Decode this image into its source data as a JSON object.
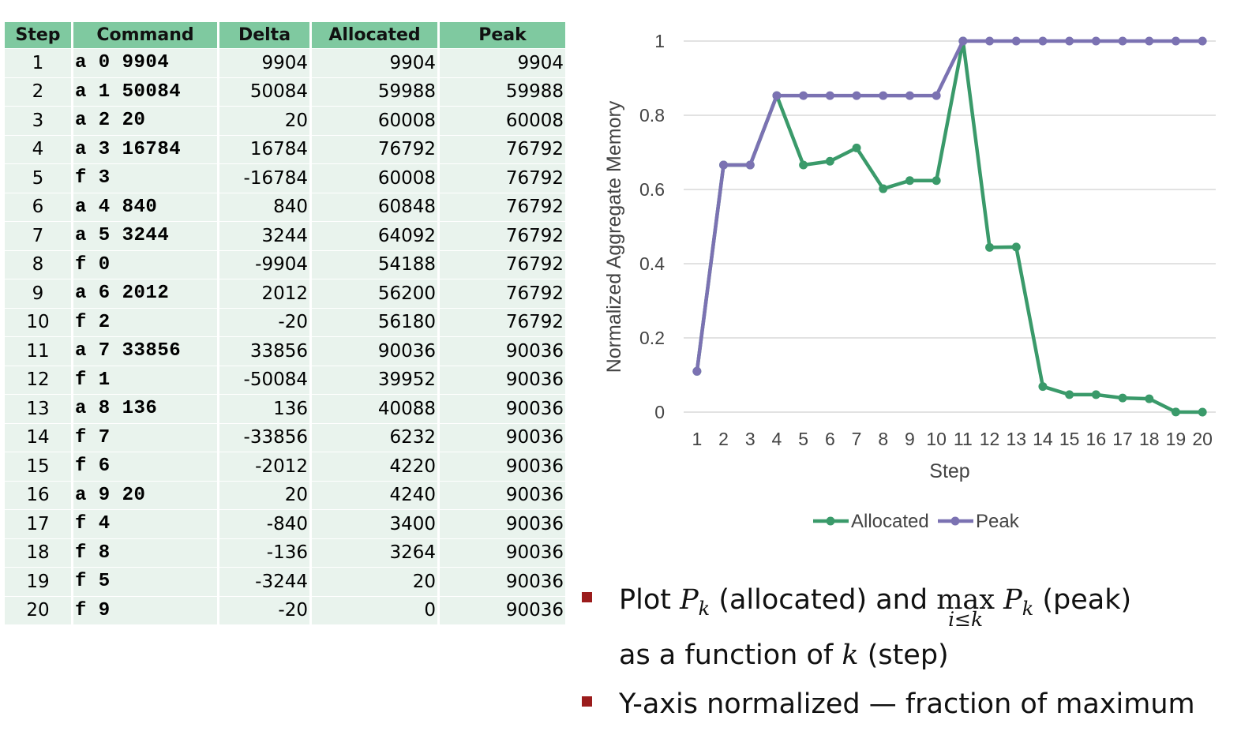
{
  "table": {
    "headers": [
      "Step",
      "Command",
      "Delta",
      "Allocated",
      "Peak"
    ],
    "rows": [
      {
        "step": "1",
        "command": "a 0 9904",
        "delta": "9904",
        "allocated": "9904",
        "peak": "9904"
      },
      {
        "step": "2",
        "command": "a 1 50084",
        "delta": "50084",
        "allocated": "59988",
        "peak": "59988"
      },
      {
        "step": "3",
        "command": "a 2 20",
        "delta": "20",
        "allocated": "60008",
        "peak": "60008"
      },
      {
        "step": "4",
        "command": "a 3 16784",
        "delta": "16784",
        "allocated": "76792",
        "peak": "76792"
      },
      {
        "step": "5",
        "command": "f 3",
        "delta": "-16784",
        "allocated": "60008",
        "peak": "76792"
      },
      {
        "step": "6",
        "command": "a 4 840",
        "delta": "840",
        "allocated": "60848",
        "peak": "76792"
      },
      {
        "step": "7",
        "command": "a 5 3244",
        "delta": "3244",
        "allocated": "64092",
        "peak": "76792"
      },
      {
        "step": "8",
        "command": "f 0",
        "delta": "-9904",
        "allocated": "54188",
        "peak": "76792"
      },
      {
        "step": "9",
        "command": "a 6 2012",
        "delta": "2012",
        "allocated": "56200",
        "peak": "76792"
      },
      {
        "step": "10",
        "command": "f 2",
        "delta": "-20",
        "allocated": "56180",
        "peak": "76792"
      },
      {
        "step": "11",
        "command": "a 7 33856",
        "delta": "33856",
        "allocated": "90036",
        "peak": "90036"
      },
      {
        "step": "12",
        "command": "f 1",
        "delta": "-50084",
        "allocated": "39952",
        "peak": "90036"
      },
      {
        "step": "13",
        "command": "a 8 136",
        "delta": "136",
        "allocated": "40088",
        "peak": "90036"
      },
      {
        "step": "14",
        "command": "f 7",
        "delta": "-33856",
        "allocated": "6232",
        "peak": "90036"
      },
      {
        "step": "15",
        "command": "f 6",
        "delta": "-2012",
        "allocated": "4220",
        "peak": "90036"
      },
      {
        "step": "16",
        "command": "a 9 20",
        "delta": "20",
        "allocated": "4240",
        "peak": "90036"
      },
      {
        "step": "17",
        "command": "f 4",
        "delta": "-840",
        "allocated": "3400",
        "peak": "90036"
      },
      {
        "step": "18",
        "command": "f 8",
        "delta": "-136",
        "allocated": "3264",
        "peak": "90036"
      },
      {
        "step": "19",
        "command": "f 5",
        "delta": "-3244",
        "allocated": "20",
        "peak": "90036"
      },
      {
        "step": "20",
        "command": "f 9",
        "delta": "-20",
        "allocated": "0",
        "peak": "90036"
      }
    ]
  },
  "chart_data": {
    "type": "line",
    "x": [
      1,
      2,
      3,
      4,
      5,
      6,
      7,
      8,
      9,
      10,
      11,
      12,
      13,
      14,
      15,
      16,
      17,
      18,
      19,
      20
    ],
    "xlabel": "Step",
    "ylabel": "Normalized Aggregate Memory",
    "ylim": [
      0,
      1
    ],
    "yticks": [
      "0",
      "0.2",
      "0.4",
      "0.6",
      "0.8",
      "1"
    ],
    "grid": "horizontal",
    "legend": "bottom",
    "series": [
      {
        "name": "Allocated",
        "color": "#3a9a6a",
        "values": [
          0.11,
          0.666,
          0.666,
          0.853,
          0.666,
          0.676,
          0.712,
          0.602,
          0.624,
          0.624,
          1.0,
          0.444,
          0.445,
          0.069,
          0.047,
          0.047,
          0.038,
          0.036,
          0.0002,
          0.0
        ]
      },
      {
        "name": "Peak",
        "color": "#7b72b2",
        "values": [
          0.11,
          0.666,
          0.666,
          0.853,
          0.853,
          0.853,
          0.853,
          0.853,
          0.853,
          0.853,
          1.0,
          1.0,
          1.0,
          1.0,
          1.0,
          1.0,
          1.0,
          1.0,
          1.0,
          1.0
        ]
      }
    ]
  },
  "bullets": {
    "b1_prefix": "Plot ",
    "b1_P": "P",
    "b1_k": "k",
    "b1_mid": " (allocated) and ",
    "b1_max": "max",
    "b1_under": "i≤k",
    "b1_P2": "P",
    "b1_k2": "k",
    "b1_suffix": " (peak)",
    "b2_prefix": "as a function of ",
    "b2_k": "k",
    "b2_suffix": " (step)",
    "b3_text": "Y-axis normalized — fraction of maximum"
  }
}
